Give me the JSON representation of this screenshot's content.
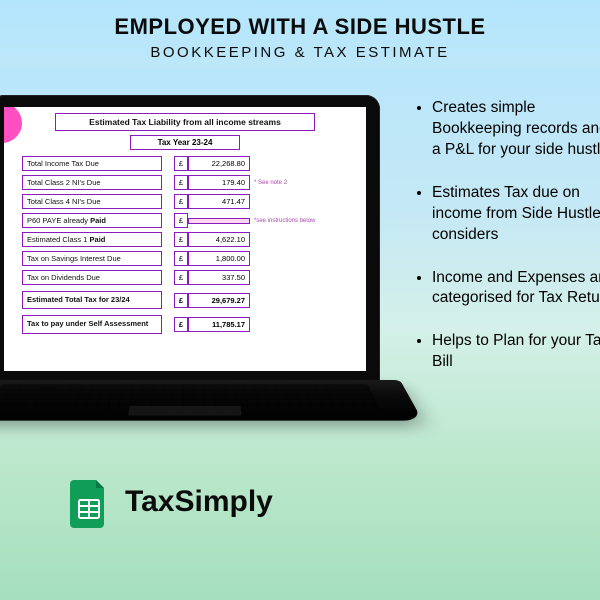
{
  "theme": {
    "accent": "#8a1bbf",
    "badge_pink": "#ff4fc1",
    "sheets_green": "#0f9d58",
    "text": "#0b0b0b"
  },
  "header": {
    "title": "EMPLOYED WITH A SIDE HUSTLE",
    "subtitle": "BOOKKEEPING & TAX ESTIMATE"
  },
  "sheet": {
    "heading": "Estimated Tax Liability from all income streams",
    "tax_year": "Tax Year 23-24",
    "currency": "£",
    "note2": "* See note 2",
    "note_instructions": "*see instructions below",
    "rows": [
      {
        "label": "Total Income Tax Due",
        "value": "22,268.80"
      },
      {
        "label": "Total Class 2 NI's Due",
        "value": "179.40",
        "note": "note2"
      },
      {
        "label": "Total Class 4 NI's Due",
        "value": "471.47"
      },
      {
        "label_html": "P60 PAYE already <b> Paid</b>",
        "value": "",
        "pink": true,
        "note": "note_instructions"
      },
      {
        "label_html": "Estimated Class 1 <b>Paid</b>",
        "value": "4,622.10"
      },
      {
        "label": "Tax on Savings Interest Due",
        "value": "1,800.00"
      },
      {
        "label": "Tax on Dividends Due",
        "value": "337.50"
      }
    ],
    "total_label": "Estimated Total Tax for 23/24",
    "total_value": "29,679.27",
    "self_label": "Tax to pay under Self Assessment",
    "self_value": "11,785.17"
  },
  "bullets": [
    "Creates simple Bookkeeping records and a P&L for your side hustle",
    "Estimates Tax due on  income from Side Hustle, considers",
    "Income and Expenses are categorised for Tax Return",
    "Helps to Plan for your Tax Bill"
  ],
  "brand": "TaxSimply"
}
